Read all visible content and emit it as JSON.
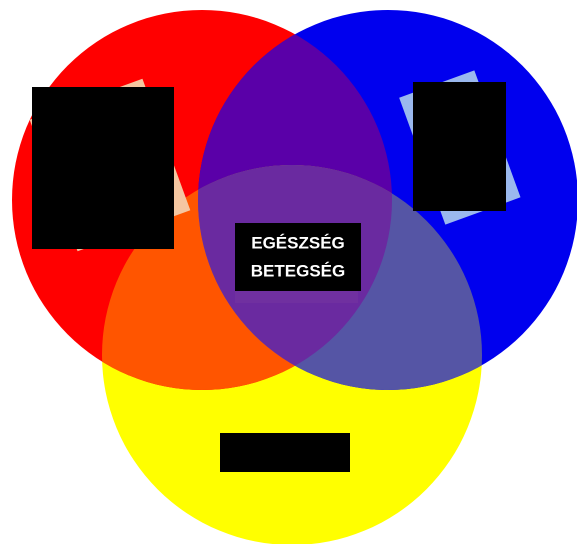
{
  "labels": {
    "center_line_1": "EGÉSZSÉG",
    "center_line_2": "BETEGSÉG"
  }
}
